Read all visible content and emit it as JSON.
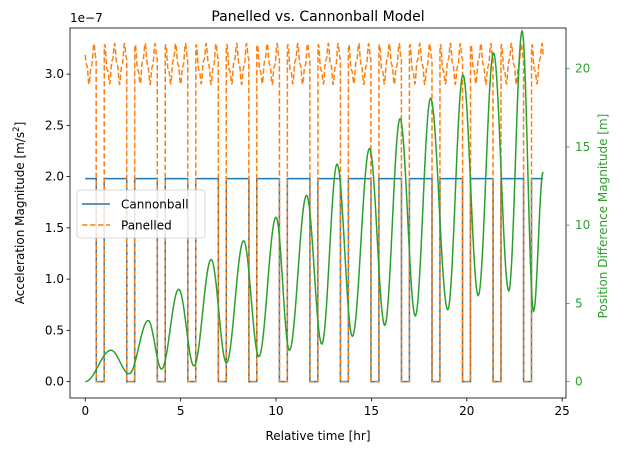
{
  "chart_data": {
    "type": "line",
    "title": "Panelled vs. Cannonball Model",
    "xlabel": "Relative time [hr]",
    "ylabel_left": "Acceleration Magnitude [m/s$^2$]",
    "ylabel_left_text": "Acceleration Magnitude [m/s",
    "ylabel_left_sup": "2",
    "ylabel_left_close": "]",
    "ylabel_right": "Position Difference Magnitude [m]",
    "left_axis_offset_text": "1e−7",
    "xlim": [
      -0.8,
      25.2
    ],
    "ylim_left": [
      -0.16,
      3.45
    ],
    "ylim_right": [
      -1.05,
      22.6
    ],
    "xticks": [
      0,
      5,
      10,
      15,
      20,
      25
    ],
    "yticks_left": [
      0.0,
      0.5,
      1.0,
      1.5,
      2.0,
      2.5,
      3.0
    ],
    "yticks_left_labels": [
      "0.0",
      "0.5",
      "1.0",
      "1.5",
      "2.0",
      "2.5",
      "3.0"
    ],
    "yticks_right": [
      0,
      5,
      10,
      15,
      20
    ],
    "grid": false,
    "legend": {
      "placement": "center-left",
      "entries": [
        "Cannonball",
        "Panelled"
      ]
    },
    "colors": {
      "cannonball": "#1f77b4",
      "panelled": "#ff7f0e",
      "position_difference": "#2ca02c",
      "axes": "#000000"
    },
    "orbit": {
      "period_hr": 1.6,
      "eclipse_start_phase": 0.36,
      "eclipse_end_phase": 0.62,
      "duration_hr": 24.0
    },
    "series": [
      {
        "name": "Cannonball",
        "axis": "left",
        "style": "solid",
        "sunlit_value": 1.98,
        "eclipse_value": 0.0
      },
      {
        "name": "Panelled",
        "axis": "left",
        "style": "dashed",
        "sunlit_min": 2.9,
        "sunlit_max": 3.3,
        "eclipse_value": 0.0
      },
      {
        "axis": "right",
        "style": "solid",
        "peaks": [
          [
            1.35,
            2.0
          ],
          [
            3.3,
            3.9
          ],
          [
            4.9,
            5.9
          ],
          [
            6.6,
            7.8
          ],
          [
            8.3,
            9.0
          ],
          [
            10.0,
            10.5
          ],
          [
            11.6,
            11.9
          ],
          [
            13.2,
            13.9
          ],
          [
            14.9,
            14.9
          ],
          [
            16.5,
            16.8
          ],
          [
            18.1,
            18.1
          ],
          [
            19.8,
            19.6
          ],
          [
            21.4,
            21.0
          ],
          [
            22.9,
            22.4
          ]
        ],
        "troughs": [
          [
            0.0,
            0.0
          ],
          [
            2.3,
            0.5
          ],
          [
            4.0,
            0.8
          ],
          [
            5.7,
            1.0
          ],
          [
            7.4,
            1.2
          ],
          [
            9.1,
            1.6
          ],
          [
            10.7,
            2.0
          ],
          [
            12.4,
            2.4
          ],
          [
            14.0,
            2.9
          ],
          [
            15.7,
            3.6
          ],
          [
            17.3,
            4.2
          ],
          [
            19.0,
            4.6
          ],
          [
            20.6,
            5.5
          ],
          [
            22.2,
            5.8
          ],
          [
            23.5,
            4.5
          ],
          [
            24.0,
            13.4
          ]
        ]
      }
    ]
  }
}
